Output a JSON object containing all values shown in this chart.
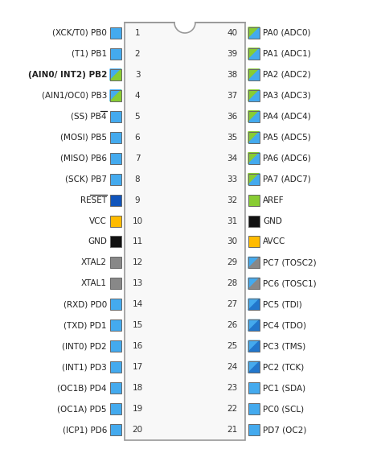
{
  "left_pins": [
    {
      "num": 1,
      "label": "(XCK/T0) PB0",
      "bold": false,
      "overline": false,
      "color": "#44AAEE"
    },
    {
      "num": 2,
      "label": "(T1) PB1",
      "bold": false,
      "overline": false,
      "color": "#44AAEE"
    },
    {
      "num": 3,
      "label": "(AIN0/ INT2) PB2",
      "bold": true,
      "overline": false,
      "color_split": [
        "#44AAEE",
        "#88CC33"
      ]
    },
    {
      "num": 4,
      "label": "(AIN1/OC0) PB3",
      "bold": false,
      "overline": false,
      "color_split": [
        "#44AAEE",
        "#88CC33"
      ]
    },
    {
      "num": 5,
      "label": "(SS) PB4",
      "bold": false,
      "overline": true,
      "overline_text": "SS",
      "color": "#44AAEE"
    },
    {
      "num": 6,
      "label": "(MOSI) PB5",
      "bold": false,
      "overline": false,
      "color": "#44AAEE"
    },
    {
      "num": 7,
      "label": "(MISO) PB6",
      "bold": false,
      "overline": false,
      "color": "#44AAEE"
    },
    {
      "num": 8,
      "label": "(SCK) PB7",
      "bold": false,
      "overline": false,
      "color": "#44AAEE"
    },
    {
      "num": 9,
      "label": "RESET",
      "bold": false,
      "overline": true,
      "overline_text": "RESET",
      "color": "#1155BB"
    },
    {
      "num": 10,
      "label": "VCC",
      "bold": false,
      "overline": false,
      "color": "#FFBB00"
    },
    {
      "num": 11,
      "label": "GND",
      "bold": false,
      "overline": false,
      "color": "#111111"
    },
    {
      "num": 12,
      "label": "XTAL2",
      "bold": false,
      "overline": false,
      "color": "#888888"
    },
    {
      "num": 13,
      "label": "XTAL1",
      "bold": false,
      "overline": false,
      "color": "#888888"
    },
    {
      "num": 14,
      "label": "(RXD) PD0",
      "bold": false,
      "overline": false,
      "color": "#44AAEE"
    },
    {
      "num": 15,
      "label": "(TXD) PD1",
      "bold": false,
      "overline": false,
      "color": "#44AAEE"
    },
    {
      "num": 16,
      "label": "(INT0) PD2",
      "bold": false,
      "overline": false,
      "color": "#44AAEE"
    },
    {
      "num": 17,
      "label": "(INT1) PD3",
      "bold": false,
      "overline": false,
      "color": "#44AAEE"
    },
    {
      "num": 18,
      "label": "(OC1B) PD4",
      "bold": false,
      "overline": false,
      "color": "#44AAEE"
    },
    {
      "num": 19,
      "label": "(OC1A) PD5",
      "bold": false,
      "overline": false,
      "color": "#44AAEE"
    },
    {
      "num": 20,
      "label": "(ICP1) PD6",
      "bold": false,
      "overline": false,
      "color": "#44AAEE"
    }
  ],
  "right_pins": [
    {
      "num": 40,
      "label": "PA0 (ADC0)",
      "bold": false,
      "overline": false,
      "color_split": [
        "#88CC33",
        "#44AAEE"
      ]
    },
    {
      "num": 39,
      "label": "PA1 (ADC1)",
      "bold": false,
      "overline": false,
      "color_split": [
        "#88CC33",
        "#44AAEE"
      ]
    },
    {
      "num": 38,
      "label": "PA2 (ADC2)",
      "bold": false,
      "overline": false,
      "color_split": [
        "#88CC33",
        "#44AAEE"
      ]
    },
    {
      "num": 37,
      "label": "PA3 (ADC3)",
      "bold": false,
      "overline": false,
      "color_split": [
        "#88CC33",
        "#44AAEE"
      ]
    },
    {
      "num": 36,
      "label": "PA4 (ADC4)",
      "bold": false,
      "overline": false,
      "color_split": [
        "#88CC33",
        "#44AAEE"
      ]
    },
    {
      "num": 35,
      "label": "PA5 (ADC5)",
      "bold": false,
      "overline": false,
      "color_split": [
        "#88CC33",
        "#44AAEE"
      ]
    },
    {
      "num": 34,
      "label": "PA6 (ADC6)",
      "bold": false,
      "overline": false,
      "color_split": [
        "#88CC33",
        "#44AAEE"
      ]
    },
    {
      "num": 33,
      "label": "PA7 (ADC7)",
      "bold": false,
      "overline": false,
      "color_split": [
        "#88CC33",
        "#44AAEE"
      ]
    },
    {
      "num": 32,
      "label": "AREF",
      "bold": false,
      "overline": false,
      "color": "#88CC33"
    },
    {
      "num": 31,
      "label": "GND",
      "bold": false,
      "overline": false,
      "color": "#111111"
    },
    {
      "num": 30,
      "label": "AVCC",
      "bold": false,
      "overline": false,
      "color": "#FFBB00"
    },
    {
      "num": 29,
      "label": "PC7 (TOSC2)",
      "bold": false,
      "overline": false,
      "color_split": [
        "#44AAEE",
        "#888888"
      ]
    },
    {
      "num": 28,
      "label": "PC6 (TOSC1)",
      "bold": false,
      "overline": false,
      "color_split": [
        "#44AAEE",
        "#888888"
      ]
    },
    {
      "num": 27,
      "label": "PC5 (TDI)",
      "bold": false,
      "overline": false,
      "color_split": [
        "#44AAEE",
        "#2277CC"
      ]
    },
    {
      "num": 26,
      "label": "PC4 (TDO)",
      "bold": false,
      "overline": false,
      "color_split": [
        "#44AAEE",
        "#2277CC"
      ]
    },
    {
      "num": 25,
      "label": "PC3 (TMS)",
      "bold": false,
      "overline": false,
      "color_split": [
        "#44AAEE",
        "#2277CC"
      ]
    },
    {
      "num": 24,
      "label": "PC2 (TCK)",
      "bold": false,
      "overline": false,
      "color_split": [
        "#44AAEE",
        "#2277CC"
      ]
    },
    {
      "num": 23,
      "label": "PC1 (SDA)",
      "bold": false,
      "overline": false,
      "color": "#44AAEE"
    },
    {
      "num": 22,
      "label": "PC0 (SCL)",
      "bold": false,
      "overline": false,
      "color": "#44AAEE"
    },
    {
      "num": 21,
      "label": "PD7 (OC2)",
      "bold": false,
      "overline": false,
      "color": "#44AAEE"
    }
  ],
  "chip_color": "#F8F8F8",
  "chip_outline": "#999999",
  "bg_color": "#FFFFFF",
  "text_color": "#222222",
  "n_pins": 20,
  "figw": 4.74,
  "figh": 5.89,
  "dpi": 100
}
